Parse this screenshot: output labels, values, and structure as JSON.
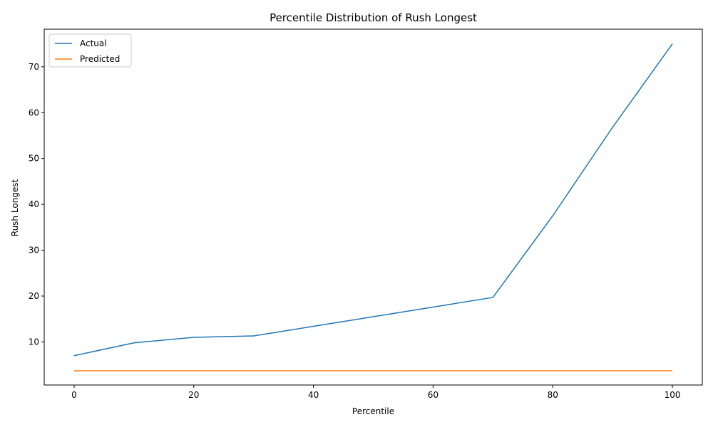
{
  "chart_data": {
    "type": "line",
    "title": "Percentile Distribution of Rush Longest",
    "xlabel": "Percentile",
    "ylabel": "Rush Longest",
    "xlim": [
      -5,
      105
    ],
    "ylim": [
      0.6,
      78.2
    ],
    "xticks": [
      0,
      20,
      40,
      60,
      80,
      100
    ],
    "yticks": [
      10,
      20,
      30,
      40,
      50,
      60,
      70
    ],
    "grid": false,
    "legend_position": "top-left",
    "x": [
      0,
      10,
      20,
      30,
      40,
      50,
      60,
      70,
      80,
      90,
      100
    ],
    "series": [
      {
        "name": "Actual",
        "color": "#1f77b4",
        "values": [
          7.0,
          9.8,
          11.0,
          11.3,
          13.4,
          15.5,
          17.6,
          19.7,
          37.5,
          56.8,
          75.0
        ]
      },
      {
        "name": "Predicted",
        "color": "#ff7f0e",
        "values": [
          3.7,
          3.7,
          3.7,
          3.7,
          3.7,
          3.7,
          3.7,
          3.7,
          3.7,
          3.7,
          3.7
        ]
      }
    ]
  }
}
